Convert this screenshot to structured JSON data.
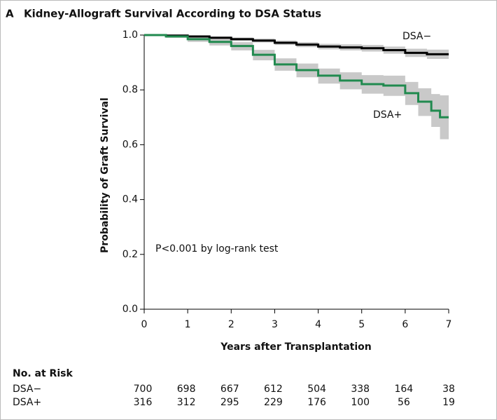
{
  "chart_data": {
    "type": "step",
    "panel_label": "A",
    "title": "Kidney-Allograft Survival According to DSA Status",
    "x_label": "Years after Transplantation",
    "y_label": "Probability of Graft Survival",
    "annotation": "P<0.001 by log-rank test",
    "xlim": [
      0,
      7
    ],
    "xticks": [
      0,
      1,
      2,
      3,
      4,
      5,
      6,
      7
    ],
    "ylim": [
      0,
      1
    ],
    "yticks": [
      {
        "value": 0,
        "label": "0.0"
      },
      0.2,
      0.4,
      0.6,
      0.8,
      {
        "value": 1,
        "label": "1.0"
      }
    ],
    "band_color": "#c9c9c9",
    "series": [
      {
        "name": "DSA−",
        "color": "#000000",
        "x": [
          0,
          0.5,
          1,
          1.5,
          2,
          2.5,
          3,
          3.5,
          4,
          4.5,
          5,
          5.5,
          6,
          6.5,
          7
        ],
        "values": [
          1,
          0.998,
          0.995,
          0.99,
          0.985,
          0.98,
          0.972,
          0.965,
          0.958,
          0.955,
          0.952,
          0.945,
          0.935,
          0.93,
          0.93
        ],
        "ci_lower": [
          1,
          0.996,
          0.991,
          0.985,
          0.979,
          0.973,
          0.964,
          0.956,
          0.948,
          0.944,
          0.94,
          0.932,
          0.92,
          0.913,
          0.91
        ],
        "ci_upper": [
          1,
          1,
          0.998,
          0.995,
          0.991,
          0.987,
          0.98,
          0.974,
          0.968,
          0.966,
          0.964,
          0.958,
          0.95,
          0.947,
          0.95
        ]
      },
      {
        "name": "DSA+",
        "color": "#218a4f",
        "x": [
          0,
          0.5,
          1,
          1.5,
          2,
          2.5,
          3,
          3.5,
          4,
          4.5,
          5,
          5.5,
          6,
          6.3,
          6.6,
          6.8,
          7
        ],
        "values": [
          1,
          0.995,
          0.985,
          0.975,
          0.96,
          0.928,
          0.893,
          0.872,
          0.852,
          0.834,
          0.821,
          0.816,
          0.788,
          0.757,
          0.724,
          0.7,
          0.7
        ],
        "ci_lower": [
          1,
          0.99,
          0.975,
          0.962,
          0.944,
          0.908,
          0.87,
          0.846,
          0.823,
          0.802,
          0.786,
          0.778,
          0.745,
          0.705,
          0.665,
          0.62,
          0.615
        ],
        "ci_upper": [
          1,
          0.999,
          0.993,
          0.986,
          0.974,
          0.946,
          0.915,
          0.896,
          0.878,
          0.864,
          0.854,
          0.852,
          0.829,
          0.806,
          0.785,
          0.78,
          0.81
        ]
      }
    ],
    "risk_table": {
      "title": "No. at Risk",
      "rows": [
        {
          "name": "DSA−",
          "values": [
            700,
            698,
            667,
            612,
            504,
            338,
            164,
            38
          ]
        },
        {
          "name": "DSA+",
          "values": [
            316,
            312,
            295,
            229,
            176,
            100,
            56,
            19
          ]
        }
      ]
    }
  }
}
